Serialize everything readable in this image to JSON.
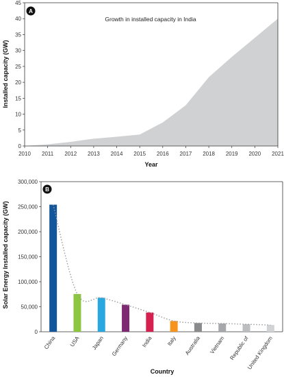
{
  "chart_data": [
    {
      "type": "area",
      "panel_label": "A",
      "title": "Growth in installed capacity in India",
      "xlabel": "Year",
      "ylabel": "Installed capacity (GW)",
      "x": [
        2010,
        2011,
        2012,
        2013,
        2014,
        2015,
        2016,
        2017,
        2018,
        2019,
        2020,
        2021
      ],
      "values": [
        0.02,
        0.5,
        1.3,
        2.3,
        2.9,
        3.6,
        7.4,
        12.8,
        21.6,
        28.0,
        34.0,
        40.0
      ],
      "xlim": [
        2010,
        2021
      ],
      "ylim": [
        0,
        45
      ],
      "yticks": [
        0,
        5,
        10,
        15,
        20,
        25,
        30,
        35,
        40,
        45
      ],
      "grid": false,
      "colors": {
        "fill": "#d0d1d3"
      }
    },
    {
      "type": "bar",
      "panel_label": "B",
      "xlabel": "Country",
      "ylabel": "Solar Energy Installed capacity (GW)",
      "categories": [
        "China",
        "USA",
        "Japan",
        "Germany",
        "India",
        "Italy",
        "Australia",
        "Vietnam",
        "Republic of",
        "United Kingdom"
      ],
      "values": [
        254000,
        75500,
        68000,
        54000,
        38500,
        21500,
        17500,
        16500,
        15000,
        13500
      ],
      "ylim": [
        0,
        300000
      ],
      "yticks": [
        "0",
        "50,000",
        "100,000",
        "150,000",
        "200,000",
        "250,000",
        "300,000"
      ],
      "grid": false,
      "trend_line": "dotted",
      "colors": [
        "#13569b",
        "#8dc63f",
        "#29a8e0",
        "#7e2a72",
        "#d6204f",
        "#f7941d",
        "#8a8b8d",
        "#a6a8ab",
        "#bcbec0",
        "#d1d3d4"
      ]
    }
  ]
}
